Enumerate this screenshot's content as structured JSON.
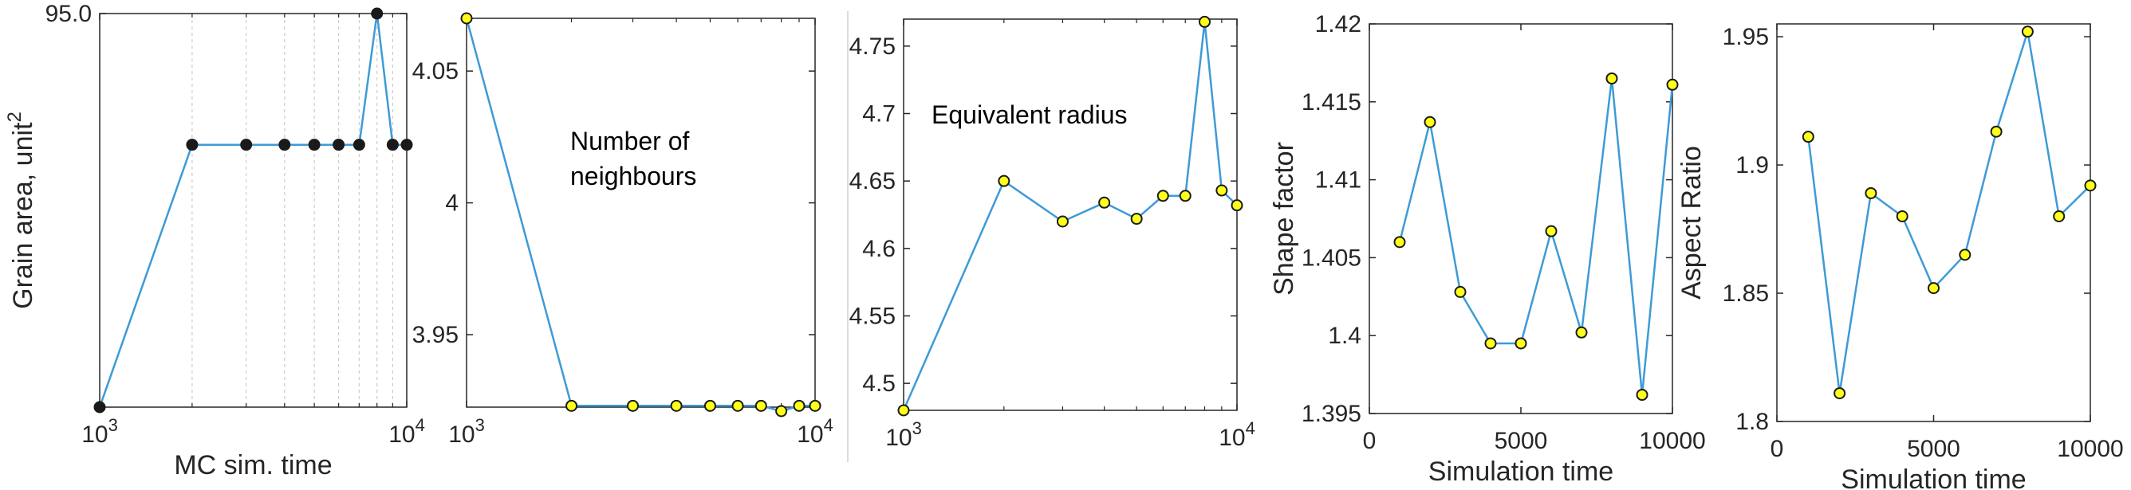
{
  "colors": {
    "line": "#3d9bd6",
    "marker_fill": "#ffff1a",
    "marker_edge": "#1a1a1a",
    "axis": "#262626",
    "grid": "#cccccc"
  },
  "chart_data": [
    {
      "type": "line",
      "xlabel": "MC sim. time",
      "ylabel": "Grain area, unit",
      "ylabel_sup": "2",
      "xscale": "log",
      "xlim": [
        1000,
        10000
      ],
      "ylim": [
        93.5,
        95.0
      ],
      "xticks": [
        {
          "v": 1000,
          "base": "10",
          "exp": "3"
        },
        {
          "v": 10000,
          "base": "10",
          "exp": "4"
        }
      ],
      "yticks": [
        {
          "v": 95.0,
          "label": "95.0"
        }
      ],
      "grid_x": [
        2000,
        3000,
        4000,
        5000,
        6000,
        7000,
        8000,
        9000
      ],
      "marker_fill": "#1a1a1a",
      "x": [
        1000,
        2000,
        3000,
        4000,
        5000,
        6000,
        7000,
        8000,
        9000,
        10000
      ],
      "y": [
        93.5,
        94.5,
        94.5,
        94.5,
        94.5,
        94.5,
        94.5,
        95.0,
        94.5,
        94.5
      ]
    },
    {
      "type": "line",
      "xlabel": "",
      "ylabel": "",
      "annotation": [
        "Number of",
        "neighbours"
      ],
      "xscale": "log",
      "xlim": [
        1000,
        10000
      ],
      "ylim": [
        3.9225,
        4.07
      ],
      "xticks": [
        {
          "v": 1000,
          "base": "10",
          "exp": "3"
        },
        {
          "v": 10000,
          "base": "10",
          "exp": "4"
        }
      ],
      "yticks": [
        {
          "v": 3.95,
          "label": "3.95"
        },
        {
          "v": 4.0,
          "label": "4"
        },
        {
          "v": 4.05,
          "label": "4.05"
        }
      ],
      "x": [
        1000,
        2000,
        3000,
        4000,
        5000,
        6000,
        7000,
        8000,
        9000,
        10000
      ],
      "y": [
        4.07,
        3.923,
        3.923,
        3.923,
        3.923,
        3.923,
        3.923,
        3.921,
        3.923,
        3.923
      ]
    },
    {
      "type": "line",
      "xlabel": "",
      "ylabel": "",
      "annotation": [
        "Equivalent radius"
      ],
      "xscale": "log",
      "xlim": [
        1000,
        10000
      ],
      "ylim": [
        4.48,
        4.77
      ],
      "xticks": [
        {
          "v": 1000,
          "base": "10",
          "exp": "3"
        },
        {
          "v": 10000,
          "base": "10",
          "exp": "4"
        }
      ],
      "yticks": [
        {
          "v": 4.5,
          "label": "4.5"
        },
        {
          "v": 4.55,
          "label": "4.55"
        },
        {
          "v": 4.6,
          "label": "4.6"
        },
        {
          "v": 4.65,
          "label": "4.65"
        },
        {
          "v": 4.7,
          "label": "4.7"
        },
        {
          "v": 4.75,
          "label": "4.75"
        }
      ],
      "x": [
        1000,
        2000,
        3000,
        4000,
        5000,
        6000,
        7000,
        8000,
        9000,
        10000
      ],
      "y": [
        4.48,
        4.65,
        4.62,
        4.634,
        4.622,
        4.639,
        4.639,
        4.768,
        4.643,
        4.632
      ]
    },
    {
      "type": "line",
      "xlabel": "Simulation time",
      "ylabel": "Shape factor",
      "xscale": "linear",
      "xlim": [
        0,
        10000
      ],
      "ylim": [
        1.395,
        1.42
      ],
      "xticks": [
        {
          "v": 0,
          "label": "0"
        },
        {
          "v": 5000,
          "label": "5000"
        },
        {
          "v": 10000,
          "label": "10000"
        }
      ],
      "yticks": [
        {
          "v": 1.395,
          "label": "1.395"
        },
        {
          "v": 1.4,
          "label": "1.4"
        },
        {
          "v": 1.405,
          "label": "1.405"
        },
        {
          "v": 1.41,
          "label": "1.41"
        },
        {
          "v": 1.415,
          "label": "1.415"
        },
        {
          "v": 1.42,
          "label": "1.42"
        }
      ],
      "x": [
        1000,
        2000,
        3000,
        4000,
        5000,
        6000,
        7000,
        8000,
        9000,
        10000
      ],
      "y": [
        1.406,
        1.4137,
        1.4028,
        1.3995,
        1.3995,
        1.4067,
        1.4002,
        1.4165,
        1.3962,
        1.4161
      ]
    },
    {
      "type": "line",
      "xlabel": "Simulation time",
      "ylabel": "Aspect Ratio",
      "xscale": "linear",
      "xlim": [
        0,
        10000
      ],
      "ylim": [
        1.8,
        1.955
      ],
      "xticks": [
        {
          "v": 0,
          "label": "0"
        },
        {
          "v": 5000,
          "label": "5000"
        },
        {
          "v": 10000,
          "label": "10000"
        }
      ],
      "yticks": [
        {
          "v": 1.8,
          "label": "1.8"
        },
        {
          "v": 1.85,
          "label": "1.85"
        },
        {
          "v": 1.9,
          "label": "1.9"
        },
        {
          "v": 1.95,
          "label": "1.95"
        }
      ],
      "x": [
        1000,
        2000,
        3000,
        4000,
        5000,
        6000,
        7000,
        8000,
        9000,
        10000
      ],
      "y": [
        1.911,
        1.811,
        1.889,
        1.88,
        1.852,
        1.865,
        1.913,
        1.952,
        1.88,
        1.892
      ]
    }
  ]
}
